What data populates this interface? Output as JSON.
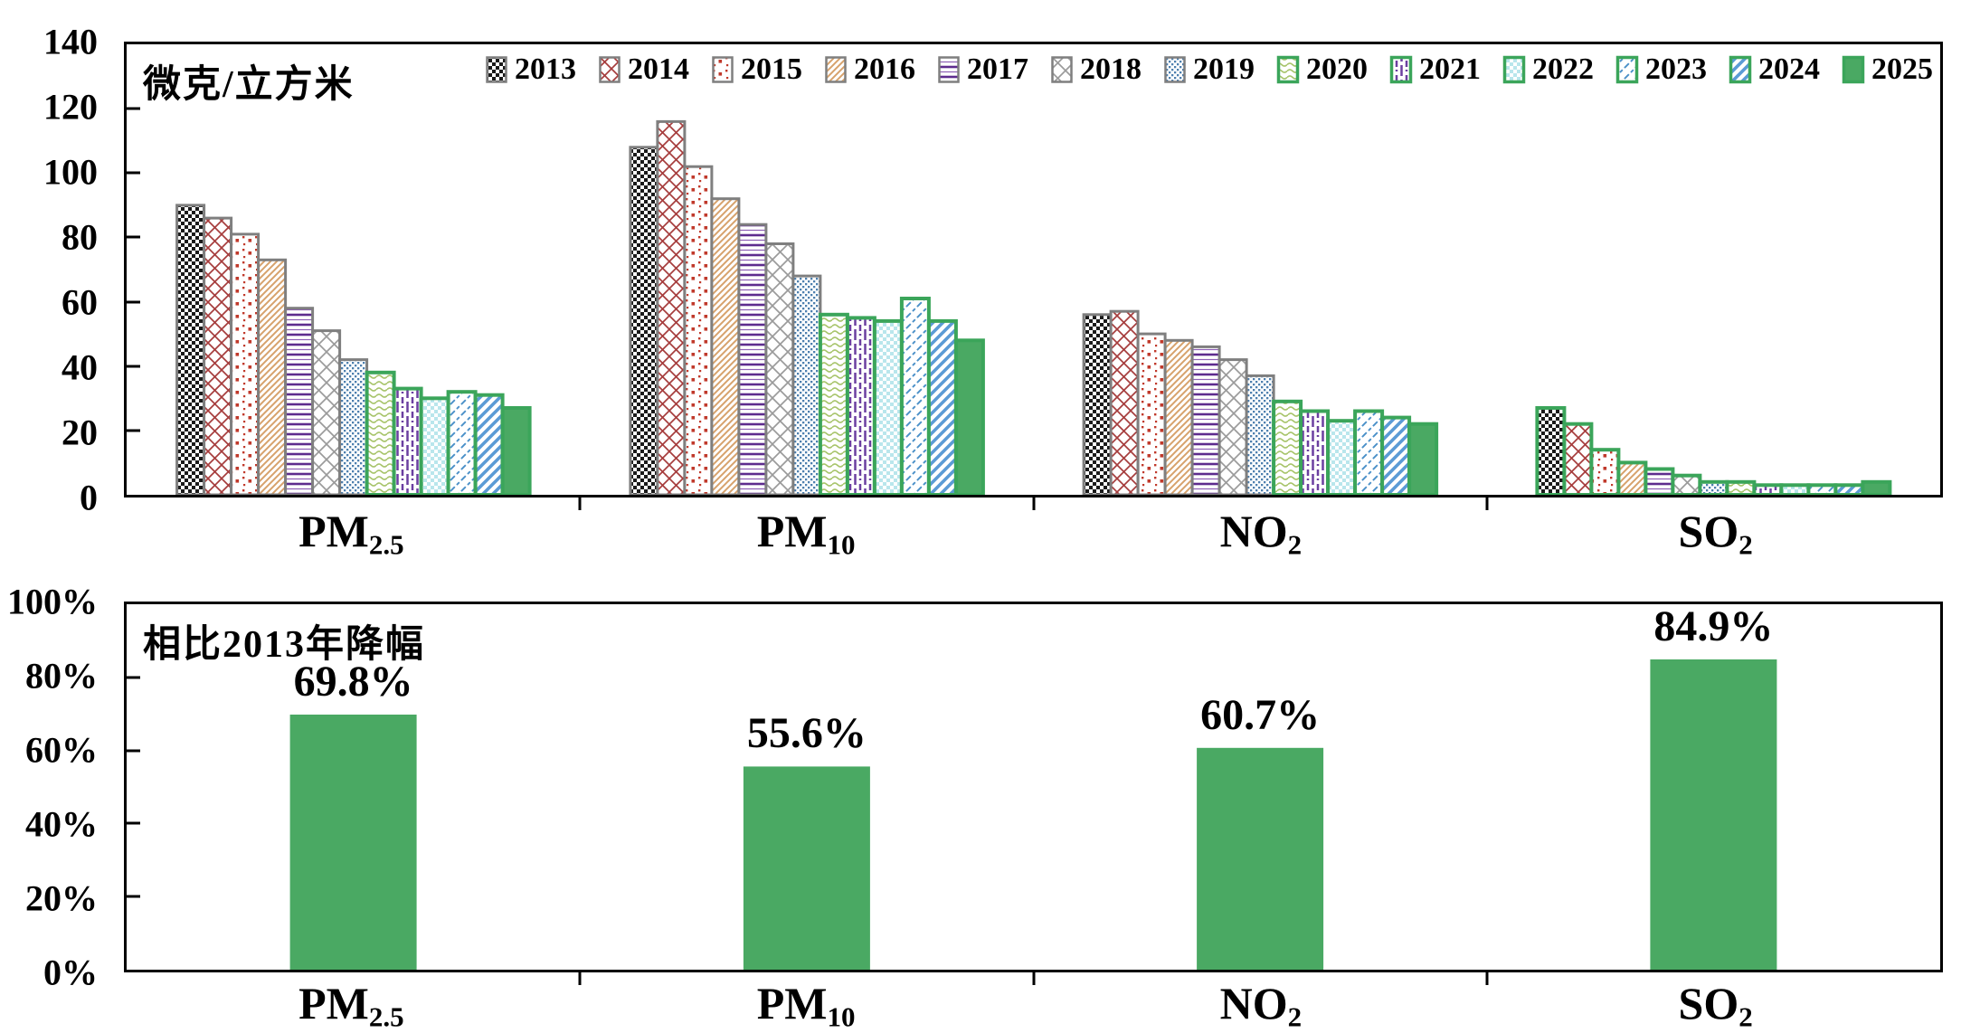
{
  "figure": {
    "description": "Two stacked bar charts of annual air pollutant concentrations 2013-2025 and their decline vs 2013"
  },
  "colors": {
    "accent_green": "#3BA55A",
    "solid_green": "#4AA963",
    "border_gray": "#7F7F7F",
    "axis_black": "#000000"
  },
  "chart_data": [
    {
      "type": "bar",
      "title": "微克/立方米",
      "ylim": [
        0,
        140
      ],
      "ytick_step": 20,
      "ytick_labels": [
        "0",
        "20",
        "40",
        "60",
        "80",
        "100",
        "120",
        "140"
      ],
      "grid": false,
      "legend_position": "top-right-inside",
      "categories": [
        {
          "base": "PM",
          "sub": "2.5"
        },
        {
          "base": "PM",
          "sub": "10"
        },
        {
          "base": "NO",
          "sub": "2"
        },
        {
          "base": "SO",
          "sub": "2"
        }
      ],
      "highlight_group_index": 3,
      "series": [
        {
          "name": "2013",
          "pattern": "p2013",
          "pattern_desc": "black-checkerboard",
          "border": "gray",
          "values": [
            90,
            108,
            56,
            27
          ]
        },
        {
          "name": "2014",
          "pattern": "p2014",
          "pattern_desc": "dark-red-diagonal-lattice",
          "border": "gray",
          "values": [
            86,
            116,
            57,
            22
          ]
        },
        {
          "name": "2015",
          "pattern": "p2015",
          "pattern_desc": "red-dots",
          "border": "gray",
          "values": [
            81,
            102,
            50,
            14
          ]
        },
        {
          "name": "2016",
          "pattern": "p2016",
          "pattern_desc": "tan-diagonal-lines",
          "border": "gray",
          "values": [
            73,
            92,
            48,
            10
          ]
        },
        {
          "name": "2017",
          "pattern": "p2017",
          "pattern_desc": "purple-horizontal-lines",
          "border": "gray",
          "values": [
            58,
            84,
            46,
            8
          ]
        },
        {
          "name": "2018",
          "pattern": "p2018",
          "pattern_desc": "gray-diagonal-lattice",
          "border": "gray",
          "values": [
            51,
            78,
            42,
            6
          ]
        },
        {
          "name": "2019",
          "pattern": "p2019",
          "pattern_desc": "blue-dot-weave",
          "border": "gray",
          "values": [
            42,
            68,
            37,
            4
          ]
        },
        {
          "name": "2020",
          "pattern": "p2020",
          "pattern_desc": "yellow-green-waves",
          "border": "green",
          "values": [
            38,
            56,
            29,
            4
          ]
        },
        {
          "name": "2021",
          "pattern": "p2021",
          "pattern_desc": "purple-vertical-dashes",
          "border": "green",
          "values": [
            33,
            55,
            26,
            3
          ]
        },
        {
          "name": "2022",
          "pattern": "p2022",
          "pattern_desc": "light-cyan-checkerboard",
          "border": "green",
          "values": [
            30,
            54,
            23,
            3
          ]
        },
        {
          "name": "2023",
          "pattern": "p2023",
          "pattern_desc": "blue-diagonal-dashes",
          "border": "green",
          "values": [
            32,
            61,
            26,
            3
          ]
        },
        {
          "name": "2024",
          "pattern": "p2024",
          "pattern_desc": "blue-diagonal-stripes",
          "border": "green",
          "values": [
            31,
            54,
            24,
            3
          ]
        },
        {
          "name": "2025",
          "pattern": "solid",
          "pattern_desc": "solid-green",
          "border": "green",
          "values": [
            27,
            48,
            22,
            4
          ]
        }
      ]
    },
    {
      "type": "bar",
      "title": "相比2013年降幅",
      "ylim": [
        0,
        100
      ],
      "ytick_step": 20,
      "ytick_labels": [
        "0%",
        "20%",
        "40%",
        "60%",
        "80%",
        "100%"
      ],
      "grid": false,
      "categories": [
        {
          "base": "PM",
          "sub": "2.5"
        },
        {
          "base": "PM",
          "sub": "10"
        },
        {
          "base": "NO",
          "sub": "2"
        },
        {
          "base": "SO",
          "sub": "2"
        }
      ],
      "values": [
        69.8,
        55.6,
        60.7,
        84.9
      ],
      "value_labels": [
        "69.8%",
        "55.6%",
        "60.7%",
        "84.9%"
      ]
    }
  ]
}
